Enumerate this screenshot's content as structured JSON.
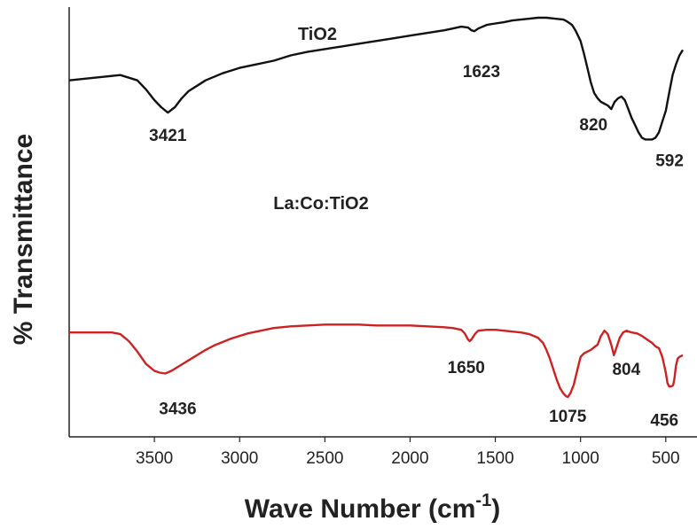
{
  "chart_data": {
    "type": "line",
    "title": "",
    "xlabel": "Wave Number (cm",
    "xlabel_superscript": "-1",
    "xlabel_suffix": ")",
    "ylabel": "% Transmittance",
    "xlim": [
      4000,
      400
    ],
    "x_reversed": true,
    "x_ticks": [
      3500,
      3000,
      2500,
      2000,
      1500,
      1000,
      500
    ],
    "x_tick_labels": [
      "3500",
      "3000",
      "2500",
      "2000",
      "1500",
      "1000",
      "500"
    ],
    "y_ticks_shown": false,
    "ylim": [
      0,
      100
    ],
    "grid": false,
    "legend": "none",
    "series": [
      {
        "name": "TiO2",
        "color": "#111111",
        "x": [
          4000,
          3900,
          3800,
          3700,
          3600,
          3550,
          3500,
          3460,
          3421,
          3380,
          3340,
          3300,
          3250,
          3200,
          3100,
          3000,
          2900,
          2800,
          2700,
          2600,
          2500,
          2400,
          2300,
          2200,
          2100,
          2000,
          1900,
          1800,
          1750,
          1700,
          1660,
          1640,
          1623,
          1600,
          1550,
          1500,
          1450,
          1400,
          1350,
          1300,
          1250,
          1200,
          1150,
          1100,
          1080,
          1050,
          1030,
          1000,
          980,
          960,
          940,
          920,
          900,
          880,
          860,
          840,
          820,
          800,
          780,
          760,
          740,
          720,
          700,
          680,
          660,
          640,
          620,
          600,
          592,
          580,
          560,
          540,
          520,
          500,
          480,
          460,
          440,
          420,
          400
        ],
        "y": [
          63,
          64,
          65,
          66,
          63,
          58,
          52,
          48,
          45,
          48,
          53,
          57,
          60,
          63,
          67,
          70,
          72,
          74,
          77,
          79,
          80.5,
          82,
          83.5,
          85,
          86.5,
          88,
          89.5,
          91,
          92,
          93,
          92.5,
          91,
          90.5,
          92,
          94,
          94.8,
          95.5,
          96.5,
          97,
          97.5,
          98,
          98,
          97.5,
          97,
          96,
          94,
          91,
          85,
          78,
          70,
          62,
          56,
          53,
          51,
          50,
          49,
          47,
          51,
          53,
          54,
          52,
          47,
          42,
          38,
          34,
          31,
          30,
          30,
          30,
          30,
          31,
          34,
          40,
          46,
          56,
          66,
          72,
          77,
          80
        ]
      },
      {
        "name": "La:Co:TiO2",
        "color": "#cc2222",
        "x": [
          4000,
          3900,
          3800,
          3750,
          3700,
          3650,
          3600,
          3550,
          3500,
          3470,
          3436,
          3400,
          3350,
          3300,
          3250,
          3200,
          3150,
          3100,
          3050,
          3000,
          2950,
          2900,
          2850,
          2800,
          2700,
          2600,
          2500,
          2400,
          2300,
          2200,
          2100,
          2000,
          1900,
          1800,
          1750,
          1700,
          1680,
          1660,
          1650,
          1640,
          1620,
          1600,
          1550,
          1500,
          1450,
          1400,
          1350,
          1300,
          1250,
          1220,
          1200,
          1180,
          1160,
          1140,
          1120,
          1100,
          1085,
          1075,
          1060,
          1040,
          1020,
          1000,
          980,
          960,
          940,
          920,
          900,
          880,
          860,
          840,
          820,
          804,
          790,
          770,
          750,
          730,
          700,
          670,
          640,
          610,
          580,
          560,
          540,
          520,
          500,
          490,
          480,
          470,
          460,
          456,
          450,
          440,
          430,
          420,
          410,
          400
        ],
        "y": [
          39,
          39,
          39,
          39,
          38,
          34,
          28,
          21,
          17,
          16,
          15.5,
          17,
          20,
          23,
          26,
          29,
          31.5,
          33.5,
          35.5,
          37,
          38.5,
          39.5,
          40.5,
          41.5,
          42.5,
          43,
          43.5,
          43.5,
          43.5,
          43,
          43,
          43,
          42.5,
          42,
          41.5,
          40.5,
          38.5,
          35,
          34,
          35,
          38,
          40,
          40.5,
          40.5,
          40,
          39.5,
          39,
          38,
          36,
          33,
          29,
          24,
          18,
          12,
          7,
          4,
          2.5,
          2,
          4,
          9,
          17,
          25,
          27,
          28,
          29,
          30.5,
          32,
          37,
          40,
          38,
          32,
          26,
          30,
          36,
          39,
          40,
          39,
          38.5,
          37,
          35,
          33,
          31,
          30,
          25,
          16,
          10,
          8,
          8,
          8.5,
          9,
          12,
          20,
          24,
          25,
          25.5,
          26
        ]
      }
    ],
    "annotations": [
      {
        "text": "TiO2",
        "series": 0,
        "kind": "series"
      },
      {
        "text": "La:Co:TiO2",
        "series": 1,
        "kind": "series"
      },
      {
        "text": "3421",
        "series": 0,
        "x": 3421,
        "kind": "peak"
      },
      {
        "text": "1623",
        "series": 0,
        "x": 1623,
        "kind": "peak"
      },
      {
        "text": "820",
        "series": 0,
        "x": 820,
        "kind": "peak"
      },
      {
        "text": "592",
        "series": 0,
        "x": 592,
        "kind": "peak"
      },
      {
        "text": "3436",
        "series": 1,
        "x": 3436,
        "kind": "peak"
      },
      {
        "text": "1650",
        "series": 1,
        "x": 1650,
        "kind": "peak"
      },
      {
        "text": "804",
        "series": 1,
        "x": 804,
        "kind": "peak"
      },
      {
        "text": "1075",
        "series": 1,
        "x": 1075,
        "kind": "peak"
      },
      {
        "text": "456",
        "series": 1,
        "x": 456,
        "kind": "peak"
      }
    ]
  }
}
